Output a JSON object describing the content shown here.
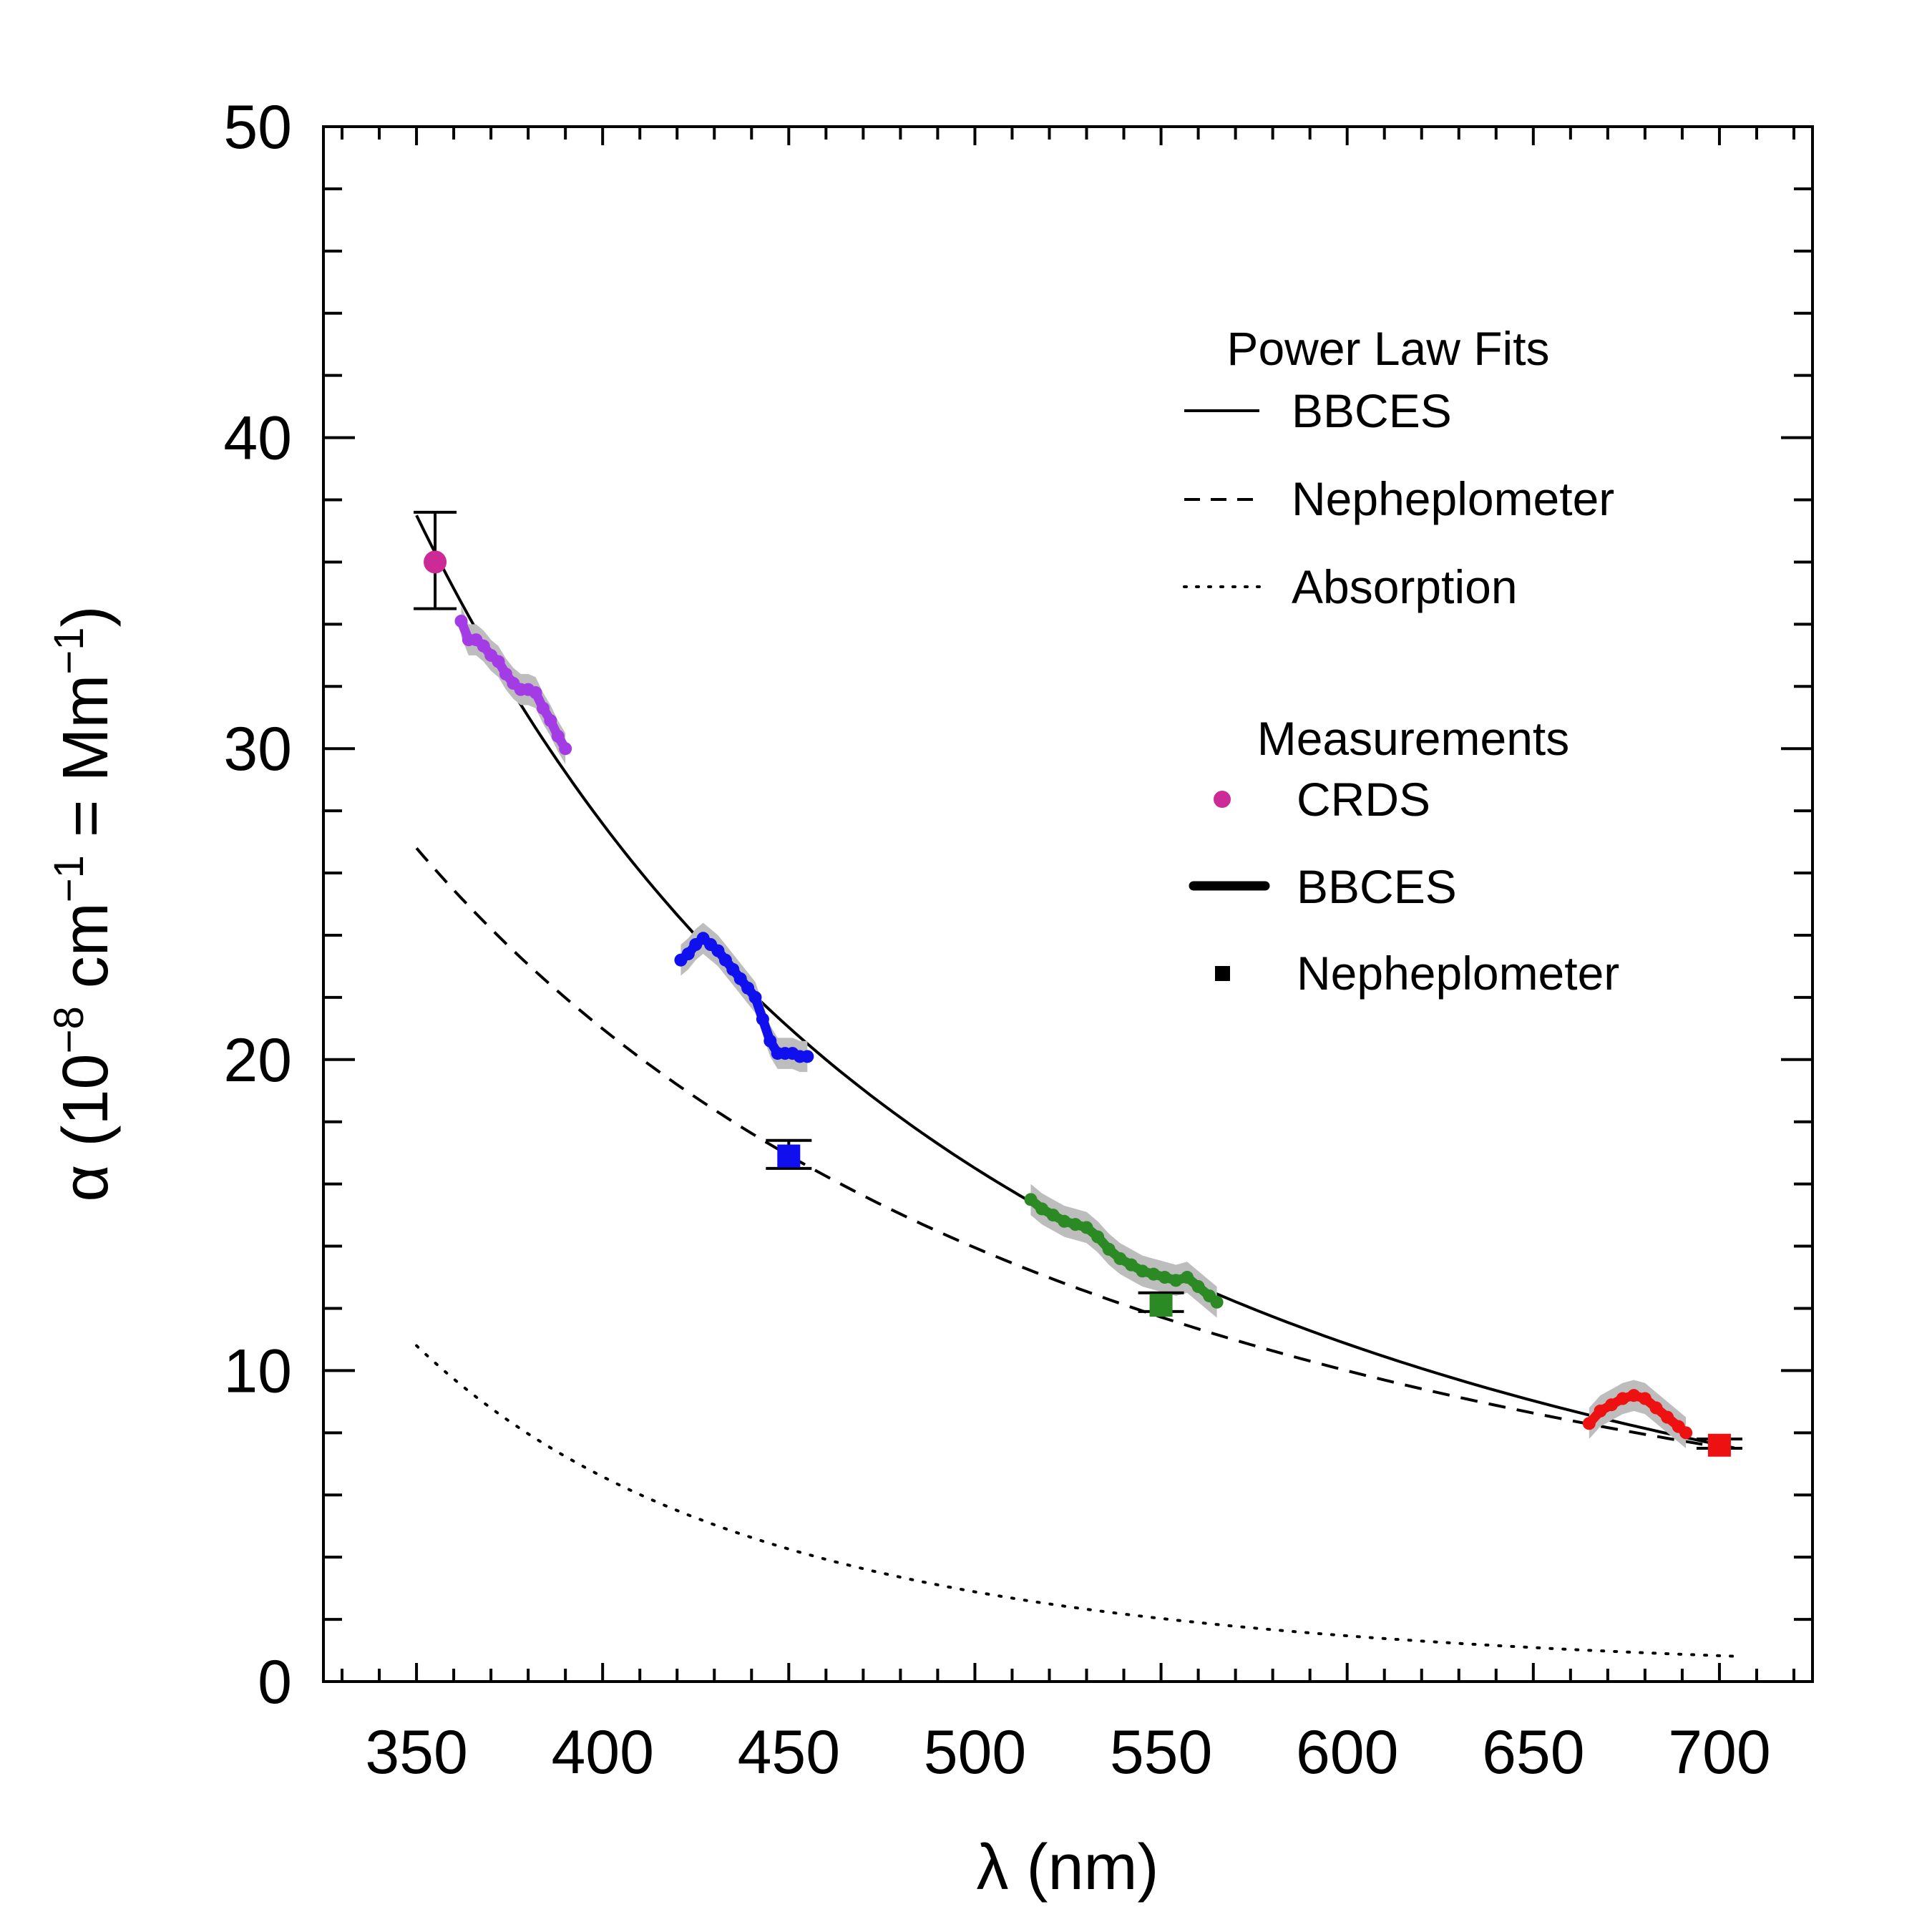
{
  "chart_data": {
    "type": "line",
    "title": "",
    "xlabel": "λ (nm)",
    "ylabel": {
      "alpha": "α",
      "ten_base": "10",
      "exp1": "−8",
      "unit1": "cm",
      "exp2": "−1",
      "mid": "=",
      "unit2": "Mm",
      "exp3": "−1"
    },
    "xlim": [
      325,
      725
    ],
    "ylim": [
      0,
      50
    ],
    "xticks": [
      350,
      400,
      450,
      500,
      550,
      600,
      650,
      700
    ],
    "xtick_labels": [
      "350",
      "400",
      "450",
      "500",
      "550",
      "600",
      "650",
      "700"
    ],
    "yticks": [
      0,
      10,
      20,
      30,
      40,
      50
    ],
    "ytick_labels": [
      "0",
      "10",
      "20",
      "30",
      "40",
      "50"
    ],
    "grid": false,
    "fits": [
      {
        "name": "BBCES",
        "style": "solid",
        "amplitude": 37.5,
        "ref_nm": 350,
        "exponent": 2.3,
        "x_range": [
          350,
          705
        ]
      },
      {
        "name": "Nepheplometer",
        "style": "dashed",
        "amplitude": 26.8,
        "ref_nm": 350,
        "exponent": 1.83,
        "x_range": [
          350,
          705
        ]
      },
      {
        "name": "Absorption",
        "style": "dotted",
        "amplitude": 10.8,
        "ref_nm": 350,
        "exponent": 3.7,
        "x_range": [
          350,
          705
        ]
      }
    ],
    "bbces_series": [
      {
        "color": "#a43ce6",
        "x": [
          362,
          364,
          366,
          368,
          370,
          372,
          374,
          376,
          378,
          380,
          382,
          384,
          386,
          388,
          390
        ],
        "y": [
          34.1,
          33.5,
          33.5,
          33.3,
          33.0,
          32.8,
          32.4,
          32.1,
          31.9,
          31.9,
          31.8,
          31.3,
          30.9,
          30.4,
          30.0
        ]
      },
      {
        "color": "#1010ee",
        "x": [
          421,
          423,
          425,
          427,
          429,
          431,
          433,
          435,
          437,
          439,
          441,
          443,
          445,
          447,
          449,
          451,
          453,
          455
        ],
        "y": [
          23.2,
          23.4,
          23.7,
          23.9,
          23.7,
          23.5,
          23.2,
          22.9,
          22.6,
          22.3,
          22.0,
          21.3,
          20.6,
          20.2,
          20.2,
          20.2,
          20.1,
          20.1
        ]
      },
      {
        "color": "#2b8a24",
        "x": [
          515,
          518,
          521,
          524,
          527,
          530,
          533,
          536,
          539,
          542,
          545,
          548,
          551,
          554,
          557,
          560,
          563,
          565
        ],
        "y": [
          15.5,
          15.2,
          15.0,
          14.8,
          14.7,
          14.6,
          14.3,
          13.9,
          13.6,
          13.4,
          13.2,
          13.1,
          13.0,
          12.9,
          13.0,
          12.7,
          12.4,
          12.2
        ]
      },
      {
        "color": "#ee1111",
        "x": [
          665,
          668,
          671,
          674,
          677,
          680,
          683,
          686,
          689,
          691
        ],
        "y": [
          8.3,
          8.7,
          8.9,
          9.1,
          9.2,
          9.1,
          8.8,
          8.5,
          8.2,
          8.0
        ]
      }
    ],
    "crds": [
      {
        "x": 355,
        "y": 36.0,
        "err_low": 34.5,
        "err_high": 37.6,
        "color": "#cc2a96"
      }
    ],
    "nephelometer": [
      {
        "x": 450,
        "y": 16.9,
        "err_low": 16.5,
        "err_high": 17.4,
        "color": "#1010ee"
      },
      {
        "x": 550,
        "y": 12.1,
        "err_low": 11.9,
        "err_high": 12.5,
        "color": "#2b8a24"
      },
      {
        "x": 700,
        "y": 7.6,
        "err_low": 7.5,
        "err_high": 7.8,
        "color": "#ee1111"
      }
    ],
    "legend": {
      "placement": "top-right",
      "fits_title": "Power Law Fits",
      "fits_entries": [
        "BBCES",
        "Nepheplometer",
        "Absorption"
      ],
      "measurements_title": "Measurements",
      "measurement_entries": [
        "CRDS",
        "BBCES",
        "Nepheplometer"
      ]
    }
  }
}
